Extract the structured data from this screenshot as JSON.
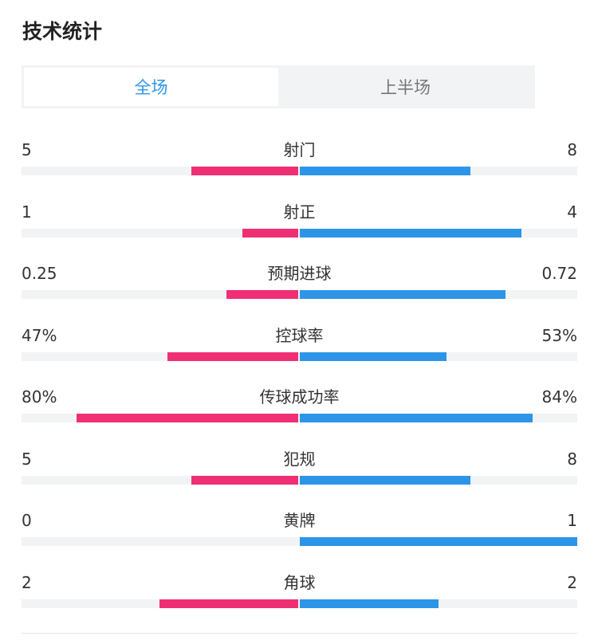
{
  "title": "技术统计",
  "tabs": [
    {
      "label": "全场",
      "active": true
    },
    {
      "label": "上半场",
      "active": false
    }
  ],
  "colors": {
    "home": "#ef2f74",
    "away": "#2d95e8",
    "track": "#f2f3f5",
    "accent": "#2d95e8"
  },
  "stats": [
    {
      "label": "射门",
      "home": "5",
      "away": "8",
      "home_ratio": 0.385,
      "away_ratio": 0.615
    },
    {
      "label": "射正",
      "home": "1",
      "away": "4",
      "home_ratio": 0.2,
      "away_ratio": 0.8
    },
    {
      "label": "预期进球",
      "home": "0.25",
      "away": "0.72",
      "home_ratio": 0.258,
      "away_ratio": 0.742
    },
    {
      "label": "控球率",
      "home": "47%",
      "away": "53%",
      "home_ratio": 0.47,
      "away_ratio": 0.53
    },
    {
      "label": "传球成功率",
      "home": "80%",
      "away": "84%",
      "home_ratio": 0.8,
      "away_ratio": 0.84
    },
    {
      "label": "犯规",
      "home": "5",
      "away": "8",
      "home_ratio": 0.385,
      "away_ratio": 0.615
    },
    {
      "label": "黄牌",
      "home": "0",
      "away": "1",
      "home_ratio": 0.0,
      "away_ratio": 1.0
    },
    {
      "label": "角球",
      "home": "2",
      "away": "2",
      "home_ratio": 0.5,
      "away_ratio": 0.5
    }
  ]
}
